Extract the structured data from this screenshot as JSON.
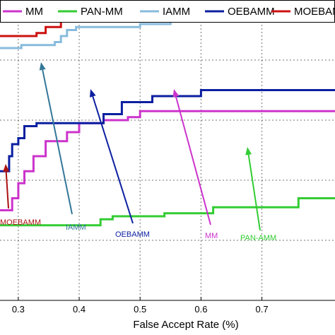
{
  "chart_data": {
    "type": "line",
    "xlabel": "False Accept Rate (%)",
    "ylabel": "",
    "xlim": [
      0.27,
      0.82
    ],
    "ylim": [
      0,
      1
    ],
    "x_ticks": [
      0.3,
      0.4,
      0.5,
      0.6,
      0.7
    ],
    "grid": true,
    "legend": {
      "position": "top",
      "entries": [
        "MM",
        "PAN-MM",
        "IAMM",
        "OEBAMM",
        "MOEBAMM"
      ]
    },
    "series": [
      {
        "name": "MM",
        "color": "#cc33cc",
        "points": [
          [
            0.27,
            0.3
          ],
          [
            0.29,
            0.3
          ],
          [
            0.29,
            0.34
          ],
          [
            0.3,
            0.34
          ],
          [
            0.3,
            0.39
          ],
          [
            0.31,
            0.39
          ],
          [
            0.31,
            0.43
          ],
          [
            0.325,
            0.43
          ],
          [
            0.325,
            0.48
          ],
          [
            0.345,
            0.48
          ],
          [
            0.345,
            0.53
          ],
          [
            0.38,
            0.53
          ],
          [
            0.38,
            0.56
          ],
          [
            0.4,
            0.56
          ],
          [
            0.4,
            0.59
          ],
          [
            0.44,
            0.59
          ],
          [
            0.44,
            0.6
          ],
          [
            0.48,
            0.6
          ],
          [
            0.48,
            0.61
          ],
          [
            0.5,
            0.61
          ],
          [
            0.5,
            0.63
          ],
          [
            0.82,
            0.63
          ]
        ]
      },
      {
        "name": "PAN-MM",
        "color": "#33cc33",
        "points": [
          [
            0.27,
            0.25
          ],
          [
            0.435,
            0.25
          ],
          [
            0.435,
            0.27
          ],
          [
            0.455,
            0.27
          ],
          [
            0.455,
            0.28
          ],
          [
            0.54,
            0.28
          ],
          [
            0.54,
            0.29
          ],
          [
            0.62,
            0.29
          ],
          [
            0.62,
            0.31
          ],
          [
            0.76,
            0.31
          ],
          [
            0.76,
            0.34
          ],
          [
            0.82,
            0.34
          ]
        ]
      },
      {
        "name": "IAMM",
        "color": "#88bbdd",
        "points": [
          [
            0.27,
            0.84
          ],
          [
            0.305,
            0.84
          ],
          [
            0.305,
            0.85
          ],
          [
            0.36,
            0.85
          ],
          [
            0.36,
            0.86
          ],
          [
            0.37,
            0.86
          ],
          [
            0.37,
            0.88
          ],
          [
            0.38,
            0.88
          ],
          [
            0.38,
            0.9
          ],
          [
            0.395,
            0.9
          ],
          [
            0.395,
            0.91
          ],
          [
            0.5,
            0.91
          ],
          [
            0.5,
            0.92
          ],
          [
            0.55,
            0.92
          ],
          [
            0.55,
            0.93
          ],
          [
            0.58,
            0.93
          ],
          [
            0.58,
            0.97
          ],
          [
            0.72,
            0.97
          ],
          [
            0.72,
            0.99
          ],
          [
            0.82,
            0.99
          ]
        ]
      },
      {
        "name": "OEBAMM",
        "color": "#0b1fa0",
        "points": [
          [
            0.27,
            0.43
          ],
          [
            0.285,
            0.43
          ],
          [
            0.285,
            0.48
          ],
          [
            0.29,
            0.48
          ],
          [
            0.29,
            0.52
          ],
          [
            0.3,
            0.52
          ],
          [
            0.3,
            0.54
          ],
          [
            0.31,
            0.54
          ],
          [
            0.31,
            0.58
          ],
          [
            0.33,
            0.58
          ],
          [
            0.33,
            0.59
          ],
          [
            0.44,
            0.59
          ],
          [
            0.44,
            0.62
          ],
          [
            0.47,
            0.62
          ],
          [
            0.47,
            0.66
          ],
          [
            0.52,
            0.66
          ],
          [
            0.52,
            0.68
          ],
          [
            0.6,
            0.68
          ],
          [
            0.6,
            0.7
          ],
          [
            0.82,
            0.7
          ]
        ]
      },
      {
        "name": "MOEBAMM",
        "color": "#cc1111",
        "points": [
          [
            0.27,
            0.88
          ],
          [
            0.33,
            0.88
          ],
          [
            0.33,
            0.89
          ],
          [
            0.345,
            0.89
          ],
          [
            0.345,
            0.91
          ],
          [
            0.37,
            0.91
          ],
          [
            0.37,
            0.93
          ],
          [
            0.45,
            0.93
          ],
          [
            0.45,
            0.94
          ],
          [
            0.55,
            0.94
          ],
          [
            0.55,
            0.95
          ],
          [
            0.82,
            0.95
          ]
        ]
      }
    ],
    "annotations": [
      {
        "text": "MOEBAMM",
        "color": "#aa1111"
      },
      {
        "text": "IAMM",
        "color": "#337799"
      },
      {
        "text": "OEBAMM",
        "color": "#0b1fa0"
      },
      {
        "text": "MM",
        "color": "#cc33cc"
      },
      {
        "text": "PAN-AMM",
        "color": "#33cc33"
      }
    ]
  }
}
